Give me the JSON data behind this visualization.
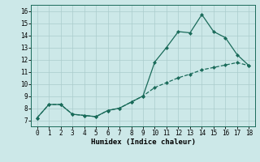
{
  "xlabel": "Humidex (Indice chaleur)",
  "x_upper": [
    0,
    1,
    2,
    3,
    4,
    5,
    6,
    7,
    8,
    9,
    10,
    11,
    12,
    13,
    14,
    15,
    16,
    17,
    18
  ],
  "y_upper": [
    7.2,
    8.3,
    8.3,
    7.5,
    7.4,
    7.3,
    7.8,
    8.0,
    8.5,
    9.0,
    11.8,
    13.0,
    14.3,
    14.2,
    15.7,
    14.3,
    13.8,
    12.4,
    11.5
  ],
  "x_lower": [
    0,
    1,
    2,
    3,
    4,
    5,
    6,
    7,
    8,
    9,
    10,
    11,
    12,
    13,
    14,
    15,
    16,
    17,
    18
  ],
  "y_lower": [
    7.2,
    8.3,
    8.3,
    7.5,
    7.4,
    7.3,
    7.8,
    8.0,
    8.5,
    9.0,
    9.7,
    10.1,
    10.5,
    10.8,
    11.15,
    11.35,
    11.55,
    11.75,
    11.5
  ],
  "line_color": "#1a6b5a",
  "bg_color": "#cce8e8",
  "grid_color": "#aacccc",
  "xlim": [
    -0.5,
    18.5
  ],
  "ylim": [
    6.5,
    16.5
  ],
  "xticks": [
    0,
    1,
    2,
    3,
    4,
    5,
    6,
    7,
    8,
    9,
    10,
    11,
    12,
    13,
    14,
    15,
    16,
    17,
    18
  ],
  "yticks": [
    7,
    8,
    9,
    10,
    11,
    12,
    13,
    14,
    15,
    16
  ],
  "tick_fontsize": 5.5,
  "xlabel_fontsize": 6.5,
  "marker": "D",
  "marker_size": 2.0,
  "linewidth": 0.9
}
